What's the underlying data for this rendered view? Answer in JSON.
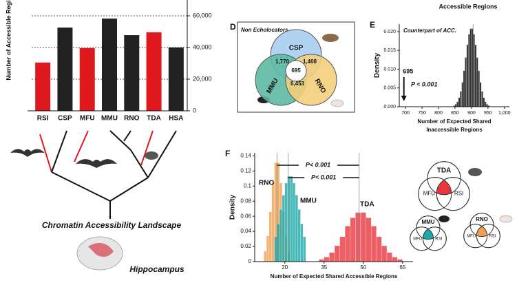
{
  "header_text": "Accessible Regions",
  "chart_data": [
    {
      "type": "bar",
      "y_label": "Number of Accessible Regions",
      "categories": [
        "RSI",
        "CSP",
        "MFU",
        "MMU",
        "RNO",
        "TDA",
        "HSA"
      ],
      "values": [
        30500,
        52600,
        39600,
        58300,
        47800,
        49600,
        40000
      ],
      "colors": [
        "#e0191e",
        "#222222",
        "#e0191e",
        "#222222",
        "#222222",
        "#e0191e",
        "#222222"
      ],
      "ylim": [
        0,
        70000
      ],
      "yticks": [
        0,
        {
          "value": 20000,
          "label": "20,000"
        },
        {
          "value": 40000,
          "label": "40,000"
        },
        {
          "value": 60000,
          "label": "60,000"
        }
      ],
      "grid": true
    },
    {
      "type": "histogram",
      "panel": "E",
      "title": "Counterpart of ACC.",
      "y_label": "Density",
      "x_label": [
        "Number of Expected Shared",
        "Inaccessible Regions"
      ],
      "xlim": [
        681,
        1015
      ],
      "xticks": [
        700,
        750,
        800,
        850,
        900,
        950,
        {
          "value": 1000,
          "label": "1,000"
        }
      ],
      "ylim": [
        0,
        0.022
      ],
      "yticks": [
        {
          "value": 0,
          "label": "0.000"
        },
        {
          "value": 0.005,
          "label": "0.005"
        },
        {
          "value": 0.01,
          "label": "0.010"
        },
        {
          "value": 0.015,
          "label": "0.015"
        },
        {
          "value": 0.02,
          "label": "0.020"
        }
      ],
      "series": [
        {
          "color": "#333333",
          "bins": [
            845,
            850,
            855,
            860,
            865,
            870,
            875,
            880,
            885,
            890,
            895,
            900,
            905,
            910,
            915,
            920,
            925,
            930,
            935,
            940,
            945,
            950,
            955
          ],
          "values": [
            0.0003,
            0.0007,
            0.0013,
            0.0024,
            0.0041,
            0.0065,
            0.0096,
            0.0131,
            0.0165,
            0.0193,
            0.0208,
            0.0208,
            0.0193,
            0.0165,
            0.0131,
            0.0096,
            0.0065,
            0.0041,
            0.0024,
            0.0013,
            0.0007,
            0.0003
          ]
        }
      ],
      "reference_lines": [
        905
      ],
      "observed": 695,
      "annotations": [
        "P < 0.001"
      ]
    },
    {
      "type": "histogram",
      "panel": "F",
      "y_label": "Density",
      "x_label": [
        "Number of Expected Shared Accessible Regions"
      ],
      "xlim": [
        8.5,
        69
      ],
      "xticks": [
        20,
        35,
        50,
        65
      ],
      "ylim": [
        0,
        0.144
      ],
      "yticks": [
        0,
        0.02,
        0.04,
        0.06,
        0.08,
        0.1,
        0.12,
        0.14
      ],
      "series": [
        {
          "name": "RNO",
          "color": "#f0a050",
          "bins": [
            12,
            13,
            14,
            15,
            16,
            17,
            18,
            19,
            20,
            21,
            22
          ],
          "values": [
            0.014,
            0.034,
            0.066,
            0.104,
            0.131,
            0.131,
            0.104,
            0.066,
            0.034,
            0.014
          ]
        },
        {
          "name": "MMU",
          "color": "#1aa8a8",
          "bins": [
            16,
            17,
            18,
            19,
            20,
            21,
            22,
            23,
            24,
            25,
            26,
            27,
            28
          ],
          "values": [
            0.033,
            0.05,
            0.069,
            0.088,
            0.104,
            0.113,
            0.113,
            0.104,
            0.088,
            0.069,
            0.05,
            0.033
          ]
        },
        {
          "name": "TDA",
          "color": "#e8363e",
          "bins": [
            33,
            35,
            37,
            39,
            41,
            43,
            45,
            47,
            49,
            51,
            53,
            55,
            57,
            59,
            61,
            63,
            65
          ],
          "values": [
            0.003,
            0.006,
            0.012,
            0.021,
            0.033,
            0.047,
            0.058,
            0.065,
            0.065,
            0.058,
            0.047,
            0.033,
            0.021,
            0.012,
            0.006,
            0.003
          ]
        }
      ],
      "reference_lines": [
        17,
        21.3,
        48.4
      ],
      "annotations": [
        "P< 0.001",
        "P< 0.001"
      ]
    }
  ],
  "panel_d": {
    "label": "D",
    "title": "Non Echolocators",
    "sets": [
      "CSP",
      "MMU",
      "RNO"
    ],
    "colors": [
      "#a9cdee",
      "#5dbaa3",
      "#f3cf7c"
    ],
    "counts": [
      "1,770",
      "1,408",
      "695",
      "6,453"
    ]
  },
  "tree": {
    "caption": "Chromatin Accessibility Landscape",
    "tissue": "Hippocampus"
  },
  "venns": [
    {
      "top": "TDA",
      "left": "MFU",
      "right": "RSI",
      "color": "#e8363e"
    },
    {
      "top": "MMU",
      "left": "MFU",
      "right": "RSI",
      "color": "#1aa8a8"
    },
    {
      "top": "RNO",
      "left": "MFU",
      "right": "RSI",
      "color": "#f0a050"
    }
  ]
}
